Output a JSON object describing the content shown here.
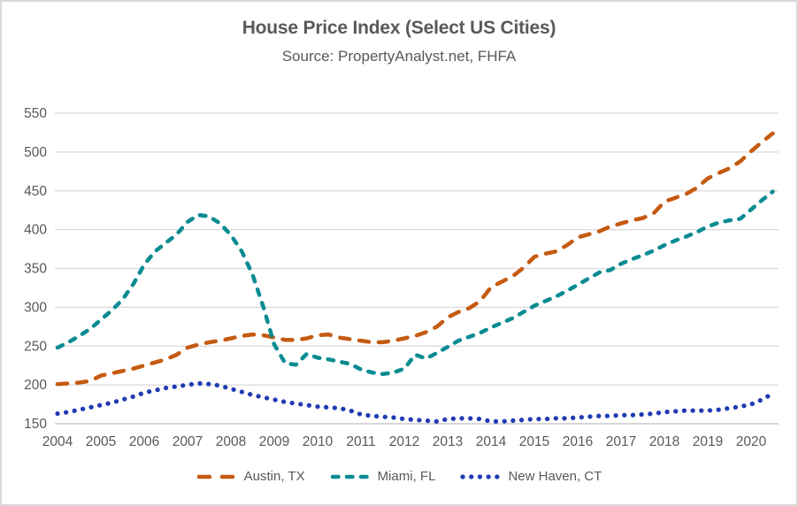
{
  "chart": {
    "title": "House Price Index (Select US Cities)",
    "subtitle": "Source: PropertyAnalyst.net, FHFA"
  },
  "colors": {
    "grid_line": "#d9d9d9",
    "axis_line": "#bfbfbf",
    "text": "#595959",
    "frame_border": "#d9d9d9",
    "austin": "#c55a11",
    "miami": "#0a8b92",
    "new_haven": "#1f3bb3"
  },
  "chart_data": {
    "type": "line",
    "title": "House Price Index (Select US Cities)",
    "subtitle": "Source: PropertyAnalyst.net, FHFA",
    "x_start": 2004,
    "x_step": 0.25,
    "x_tick_labels": [
      "2004",
      "2005",
      "2006",
      "2007",
      "2008",
      "2009",
      "2010",
      "2011",
      "2012",
      "2013",
      "2014",
      "2015",
      "2016",
      "2017",
      "2018",
      "2019",
      "2020"
    ],
    "ylim": [
      150,
      550
    ],
    "y_ticks": [
      150,
      200,
      250,
      300,
      350,
      400,
      450,
      500,
      550
    ],
    "grid": true,
    "legend_position": "bottom",
    "series": [
      {
        "name": "Austin, TX",
        "color": "#c55a11",
        "line_style": "long-dash",
        "stroke_width": 4.5,
        "values": [
          201,
          202,
          203,
          205,
          212,
          215,
          218,
          221,
          225,
          229,
          233,
          239,
          248,
          252,
          255,
          257,
          260,
          263,
          265,
          264,
          261,
          258,
          258,
          260,
          264,
          265,
          261,
          259,
          257,
          255,
          255,
          257,
          260,
          263,
          268,
          275,
          287,
          294,
          299,
          308,
          326,
          333,
          340,
          351,
          365,
          369,
          372,
          380,
          390,
          394,
          398,
          404,
          408,
          412,
          415,
          421,
          436,
          441,
          446,
          454,
          466,
          473,
          479,
          488,
          501,
          513,
          524
        ]
      },
      {
        "name": "Miami, FL",
        "color": "#0a8b92",
        "line_style": "dash",
        "stroke_width": 4.5,
        "values": [
          248,
          255,
          263,
          272,
          284,
          296,
          310,
          330,
          355,
          372,
          383,
          394,
          410,
          419,
          417,
          408,
          393,
          372,
          342,
          300,
          252,
          228,
          226,
          240,
          235,
          233,
          230,
          227,
          220,
          216,
          214,
          216,
          221,
          239,
          234,
          241,
          249,
          257,
          262,
          267,
          274,
          280,
          286,
          294,
          302,
          308,
          314,
          321,
          329,
          337,
          345,
          348,
          356,
          362,
          367,
          373,
          380,
          386,
          391,
          397,
          404,
          409,
          412,
          414,
          426,
          438,
          449
        ]
      },
      {
        "name": "New Haven, CT",
        "color": "#1f3bb3",
        "line_style": "dot",
        "stroke_width": 5.2,
        "values": [
          163,
          165,
          168,
          171,
          174,
          177,
          181,
          185,
          190,
          193,
          196,
          198,
          200,
          202,
          201,
          199,
          195,
          191,
          187,
          184,
          181,
          178,
          176,
          174,
          172,
          171,
          170,
          167,
          162,
          160,
          159,
          158,
          156,
          155,
          154,
          153,
          156,
          157,
          157,
          156,
          153,
          153,
          154,
          155,
          156,
          156,
          157,
          157,
          158,
          159,
          160,
          160,
          161,
          161,
          162,
          163,
          165,
          166,
          167,
          167,
          167,
          168,
          170,
          172,
          175,
          181,
          189
        ]
      }
    ]
  }
}
